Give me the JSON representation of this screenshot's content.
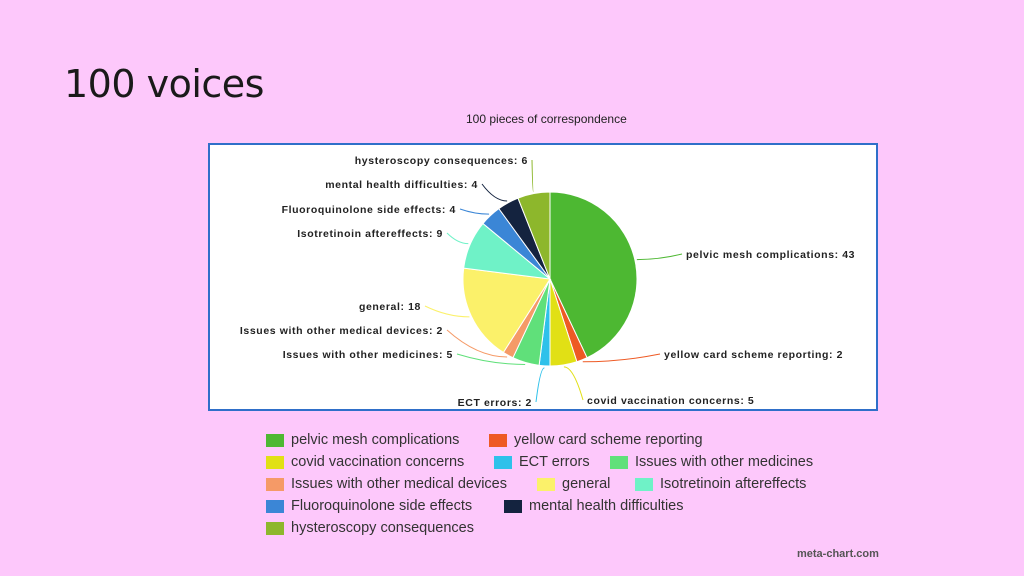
{
  "slide": {
    "title": "100 voices",
    "watermark": "meta-chart.com"
  },
  "chart_data": {
    "type": "pie",
    "title": "100 pieces of correspondence",
    "legend_placement": "bottom",
    "slices": [
      {
        "name": "pelvic mesh complications",
        "value": 43,
        "color": "#4db832",
        "label": "pelvic mesh complications: 43"
      },
      {
        "name": "yellow card scheme reporting",
        "value": 2,
        "color": "#ee5a24",
        "label": "yellow card scheme reporting: 2"
      },
      {
        "name": "covid vaccination concerns",
        "value": 5,
        "color": "#e1e015",
        "label": "covid vaccination concerns: 5"
      },
      {
        "name": "ECT errors",
        "value": 2,
        "color": "#2ec1ea",
        "label": "ECT errors: 2"
      },
      {
        "name": "Issues with other medicines",
        "value": 5,
        "color": "#60e07a",
        "label": "Issues with other medicines: 5"
      },
      {
        "name": "Issues with other medical devices",
        "value": 2,
        "color": "#f59a67",
        "label": "Issues with other medical devices: 2"
      },
      {
        "name": "general",
        "value": 18,
        "color": "#fbf16a",
        "label": "general: 18"
      },
      {
        "name": "Isotretinoin aftereffects",
        "value": 9,
        "color": "#6ff2c7",
        "label": "Isotretinoin aftereffects: 9"
      },
      {
        "name": "Fluoroquinolone side effects",
        "value": 4,
        "color": "#3b86d6",
        "label": "Fluoroquinolone side effects: 4"
      },
      {
        "name": "mental health difficulties",
        "value": 4,
        "color": "#14233f",
        "label": "mental health difficulties: 4"
      },
      {
        "name": "hysteroscopy consequences",
        "value": 6,
        "color": "#8db72c",
        "label": "hysteroscopy consequences: 6"
      }
    ]
  }
}
